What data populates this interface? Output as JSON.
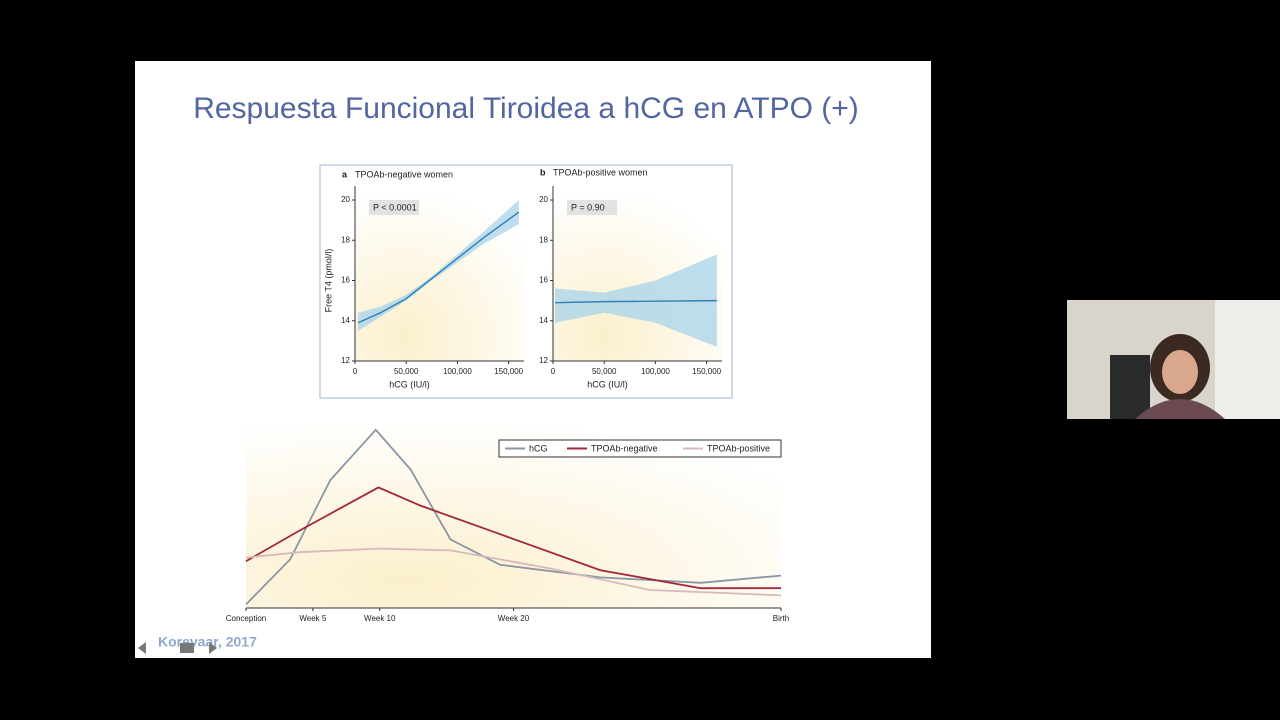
{
  "slide": {
    "title": "Respuesta Funcional Tiroidea a hCG en ATPO (+)",
    "citation": "Korevaar, 2017"
  },
  "chart_data": [
    {
      "type": "line",
      "panel": "a",
      "title": "TPOAb-negative women",
      "annotation": "P < 0.0001",
      "xlabel": "hCG (IU/l)",
      "ylabel": "Free T4 (pmol/l)",
      "x": [
        3000,
        25000,
        50000,
        75000,
        100000,
        125000,
        160000
      ],
      "series": [
        {
          "color": "#2f7fb8",
          "band_color": "#a8d3ea",
          "values": [
            13.9,
            14.4,
            15.1,
            16.1,
            17.1,
            18.1,
            19.4
          ],
          "lower": [
            13.5,
            14.2,
            15.0,
            16.0,
            16.9,
            17.8,
            18.8
          ],
          "upper": [
            14.4,
            14.7,
            15.3,
            16.2,
            17.3,
            18.4,
            20.0
          ]
        }
      ],
      "xlim": [
        0,
        165000
      ],
      "xticks": [
        0,
        {
          "value": 50000,
          "label": "50,000"
        },
        {
          "value": 100000,
          "label": "100,000"
        },
        {
          "value": 150000,
          "label": "150,000"
        }
      ],
      "ylim": [
        12,
        20
      ],
      "yticks": [
        12,
        14,
        16,
        18,
        20
      ]
    },
    {
      "type": "line",
      "panel": "b",
      "title": "TPOAb-positive women",
      "annotation": "P = 0.90",
      "xlabel": "hCG (IU/l)",
      "x": [
        2000,
        50000,
        100000,
        160000
      ],
      "series": [
        {
          "color": "#2f7fb8",
          "band_color": "#a8d3ea",
          "values": [
            14.9,
            14.95,
            14.97,
            15.0
          ],
          "lower": [
            13.9,
            14.4,
            13.9,
            12.7
          ],
          "upper": [
            15.6,
            15.4,
            16.0,
            17.3
          ]
        }
      ],
      "xlim": [
        0,
        165000
      ],
      "xticks": [
        0,
        {
          "value": 50000,
          "label": "50,000"
        },
        {
          "value": 100000,
          "label": "100,000"
        },
        {
          "value": 150000,
          "label": "150,000"
        }
      ],
      "ylim": [
        12,
        20
      ],
      "yticks": [
        12,
        14,
        16,
        18,
        20
      ]
    },
    {
      "type": "line",
      "legend": "top-right",
      "series": [
        {
          "name": "hCG",
          "color": "#8a96a6",
          "x": [
            0,
            3.3,
            6.3,
            9.7,
            12.3,
            15.3,
            19,
            26.5,
            34,
            40
          ],
          "values": [
            2,
            27,
            71,
            99,
            77,
            38,
            24,
            17,
            14,
            18
          ]
        },
        {
          "name": "TPOAb-negative",
          "color": "#a0283a",
          "x": [
            0,
            4,
            9.9,
            13,
            19,
            26.5,
            34,
            40
          ],
          "values": [
            26,
            43,
            67,
            57,
            41,
            21,
            11,
            11
          ]
        },
        {
          "name": "TPOAb-positive",
          "color": "#d9b8bc",
          "x": [
            0,
            4,
            9.9,
            15.3,
            22.7,
            30.2,
            40
          ],
          "values": [
            28,
            31,
            33,
            32,
            22,
            10,
            7
          ]
        }
      ],
      "xlim": [
        0,
        40
      ],
      "xticks": [
        {
          "value": 0,
          "label": "Conception"
        },
        {
          "value": 5,
          "label": "Week 5"
        },
        {
          "value": 10,
          "label": "Week 10"
        },
        {
          "value": 20,
          "label": "Week 20"
        },
        {
          "value": 40,
          "label": "Birth"
        }
      ],
      "ylim": [
        0,
        100
      ]
    }
  ]
}
